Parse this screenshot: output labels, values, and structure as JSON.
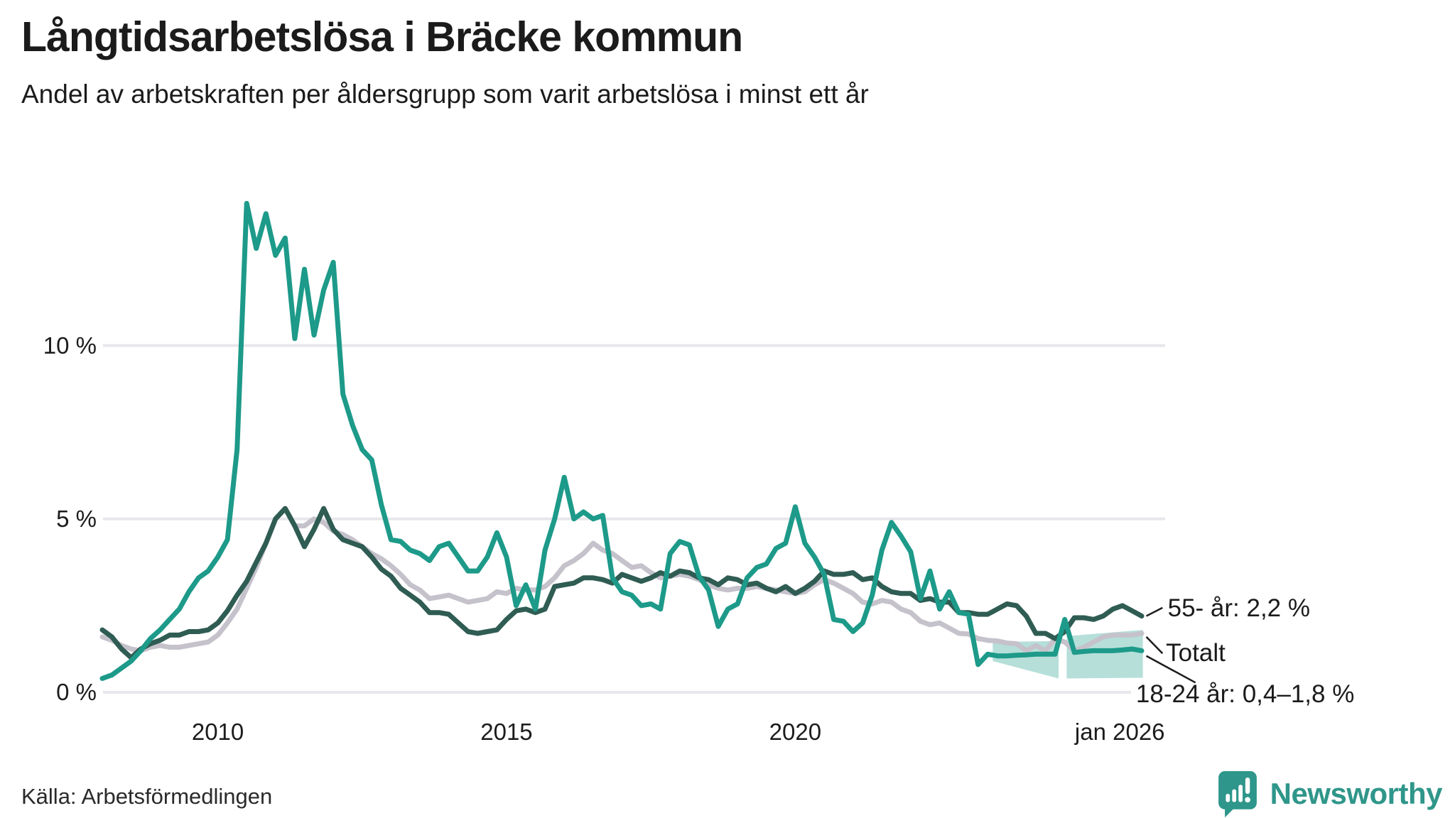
{
  "header": {
    "title": "Långtidsarbetslösa i Bräcke kommun",
    "subtitle": "Andel av arbetskraften per åldersgrupp som varit arbetslösa i minst ett år"
  },
  "footer": {
    "source": "Källa: Arbetsförmedlingen",
    "brand": "Newsworthy",
    "brand_color": "#2f968a"
  },
  "chart_data": {
    "type": "line",
    "title": "Långtidsarbetslösa i Bräcke kommun",
    "subtitle": "Andel av arbetskraften per åldersgrupp som varit arbetslösa i minst ett år",
    "y_unit": "%",
    "x_start_year": 2008,
    "x_step_months": 2,
    "xlim": [
      2008,
      2026.45
    ],
    "ylim": [
      0,
      14.8
    ],
    "grid": "horizontal-only",
    "grid_color": "#e8e7eb",
    "annotation_color": "#1c1c1c",
    "legend": "end-of-line-labels",
    "y_ticks": [
      {
        "value": 0,
        "label": "0 %"
      },
      {
        "value": 5,
        "label": "5 %"
      },
      {
        "value": 10,
        "label": "10 %"
      }
    ],
    "x_ticks": [
      {
        "x": 2010,
        "label": "2010",
        "align": "center"
      },
      {
        "x": 2015,
        "label": "2015",
        "align": "center"
      },
      {
        "x": 2020,
        "label": "2020",
        "align": "center"
      },
      {
        "x": 2026.4,
        "label": "jan 2026",
        "align": "end"
      }
    ],
    "series": [
      {
        "name": "Totalt",
        "z": 1,
        "color": "#c5c2cb",
        "end_label": "Totalt",
        "end_value": 1.7,
        "values": [
          1.6,
          1.5,
          1.35,
          1.25,
          1.2,
          1.3,
          1.35,
          1.3,
          1.3,
          1.35,
          1.4,
          1.45,
          1.65,
          2.0,
          2.4,
          3.0,
          3.6,
          4.3,
          5.0,
          5.3,
          4.8,
          4.8,
          5.0,
          4.9,
          4.65,
          4.55,
          4.4,
          4.2,
          4.0,
          3.85,
          3.65,
          3.4,
          3.1,
          2.95,
          2.7,
          2.75,
          2.8,
          2.7,
          2.6,
          2.65,
          2.7,
          2.9,
          2.85,
          3.0,
          2.95,
          2.95,
          3.05,
          3.3,
          3.65,
          3.8,
          4.0,
          4.3,
          4.1,
          4.0,
          3.8,
          3.6,
          3.65,
          3.45,
          3.3,
          3.35,
          3.4,
          3.35,
          3.25,
          3.1,
          3.0,
          2.95,
          3.0,
          3.0,
          3.05,
          3.0,
          2.95,
          2.9,
          2.85,
          2.9,
          3.1,
          3.25,
          3.15,
          3.0,
          2.85,
          2.6,
          2.55,
          2.65,
          2.6,
          2.4,
          2.3,
          2.05,
          1.95,
          2.0,
          1.85,
          1.7,
          1.68,
          1.55,
          1.5,
          1.48,
          1.42,
          1.4,
          1.2,
          1.35,
          1.2,
          1.55,
          1.45,
          1.2,
          1.3,
          1.45,
          1.6,
          1.65,
          1.65,
          1.65,
          1.7
        ]
      },
      {
        "name": "55- år",
        "z": 2,
        "color": "#2f5c53",
        "end_label": "55- år: 2,2 %",
        "end_value": 2.2,
        "values": [
          1.8,
          1.6,
          1.25,
          1.0,
          1.25,
          1.4,
          1.5,
          1.65,
          1.65,
          1.75,
          1.75,
          1.8,
          2.0,
          2.35,
          2.8,
          3.2,
          3.75,
          4.3,
          5.0,
          5.3,
          4.8,
          4.2,
          4.7,
          5.3,
          4.7,
          4.4,
          4.3,
          4.2,
          3.9,
          3.55,
          3.35,
          3.0,
          2.8,
          2.6,
          2.3,
          2.3,
          2.25,
          2.0,
          1.75,
          1.7,
          1.75,
          1.8,
          2.1,
          2.35,
          2.4,
          2.3,
          2.4,
          3.05,
          3.1,
          3.15,
          3.3,
          3.3,
          3.25,
          3.15,
          3.4,
          3.3,
          3.2,
          3.3,
          3.45,
          3.35,
          3.5,
          3.45,
          3.3,
          3.25,
          3.1,
          3.3,
          3.25,
          3.1,
          3.15,
          3.0,
          2.9,
          3.05,
          2.85,
          3.0,
          3.2,
          3.5,
          3.4,
          3.4,
          3.45,
          3.25,
          3.3,
          3.05,
          2.9,
          2.85,
          2.85,
          2.65,
          2.7,
          2.6,
          2.6,
          2.3,
          2.3,
          2.25,
          2.25,
          2.4,
          2.55,
          2.5,
          2.2,
          1.7,
          1.7,
          1.55,
          1.75,
          2.15,
          2.15,
          2.1,
          2.2,
          2.4,
          2.5,
          2.35,
          2.2
        ]
      },
      {
        "name": "18-24 år",
        "z": 3,
        "color": "#1d9a89",
        "end_label": "18-24 år: 0,4–1,8 %",
        "end_value": 1.2,
        "values": [
          0.4,
          0.5,
          0.7,
          0.9,
          1.2,
          1.55,
          1.8,
          2.1,
          2.4,
          2.9,
          3.3,
          3.5,
          3.9,
          4.4,
          7.0,
          14.1,
          12.8,
          13.8,
          12.6,
          13.1,
          10.2,
          12.2,
          10.3,
          11.6,
          12.4,
          8.6,
          7.7,
          7.0,
          6.7,
          5.4,
          4.4,
          4.35,
          4.1,
          4.0,
          3.8,
          4.2,
          4.3,
          3.9,
          3.5,
          3.5,
          3.9,
          4.6,
          3.9,
          2.5,
          3.1,
          2.4,
          4.1,
          5.0,
          6.2,
          5.0,
          5.2,
          5.0,
          5.1,
          3.3,
          2.9,
          2.8,
          2.5,
          2.55,
          2.4,
          4.0,
          4.35,
          4.25,
          3.35,
          2.95,
          1.9,
          2.4,
          2.55,
          3.3,
          3.6,
          3.7,
          4.15,
          4.3,
          5.35,
          4.3,
          3.9,
          3.4,
          2.1,
          2.05,
          1.75,
          2.0,
          2.8,
          4.1,
          4.9,
          4.5,
          4.05,
          2.7,
          3.5,
          2.4,
          2.9,
          2.3,
          2.25,
          0.8,
          1.1,
          1.05,
          1.05,
          1.07,
          1.08,
          1.1,
          1.1,
          1.1,
          2.1,
          1.15,
          1.18,
          1.2,
          1.2,
          1.2,
          1.22,
          1.25,
          1.2
        ]
      }
    ],
    "forecast_band": {
      "series": "18-24 år",
      "label": "0,4–1,8 %",
      "color": "rgba(29,154,137,0.32)",
      "segments": [
        {
          "from": 2023.42,
          "to": 2024.56,
          "high0": 1.45,
          "high1": 1.48,
          "low0": 0.9,
          "low1": 0.4
        },
        {
          "from": 2024.7,
          "to": 2026.02,
          "high0": 1.62,
          "high1": 1.8,
          "low0": 0.4,
          "low1": 0.42
        }
      ]
    },
    "annotations": [
      {
        "text": "55- år: 2,2 %",
        "label": {
          "x": 2026.45,
          "y": 2.36
        },
        "leader": [
          [
            2026.08,
            2.2
          ],
          [
            2026.36,
            2.44
          ]
        ]
      },
      {
        "text": "Totalt",
        "label": {
          "x": 2026.42,
          "y": 1.07
        },
        "leader": [
          [
            2026.08,
            1.6
          ],
          [
            2026.36,
            1.12
          ]
        ]
      },
      {
        "text": "18-24 år: 0,4–1,8 %",
        "label": {
          "x": 2025.9,
          "y": -0.12
        },
        "leader": [
          [
            2026.08,
            1.05
          ],
          [
            2026.93,
            0.28
          ]
        ]
      }
    ]
  }
}
